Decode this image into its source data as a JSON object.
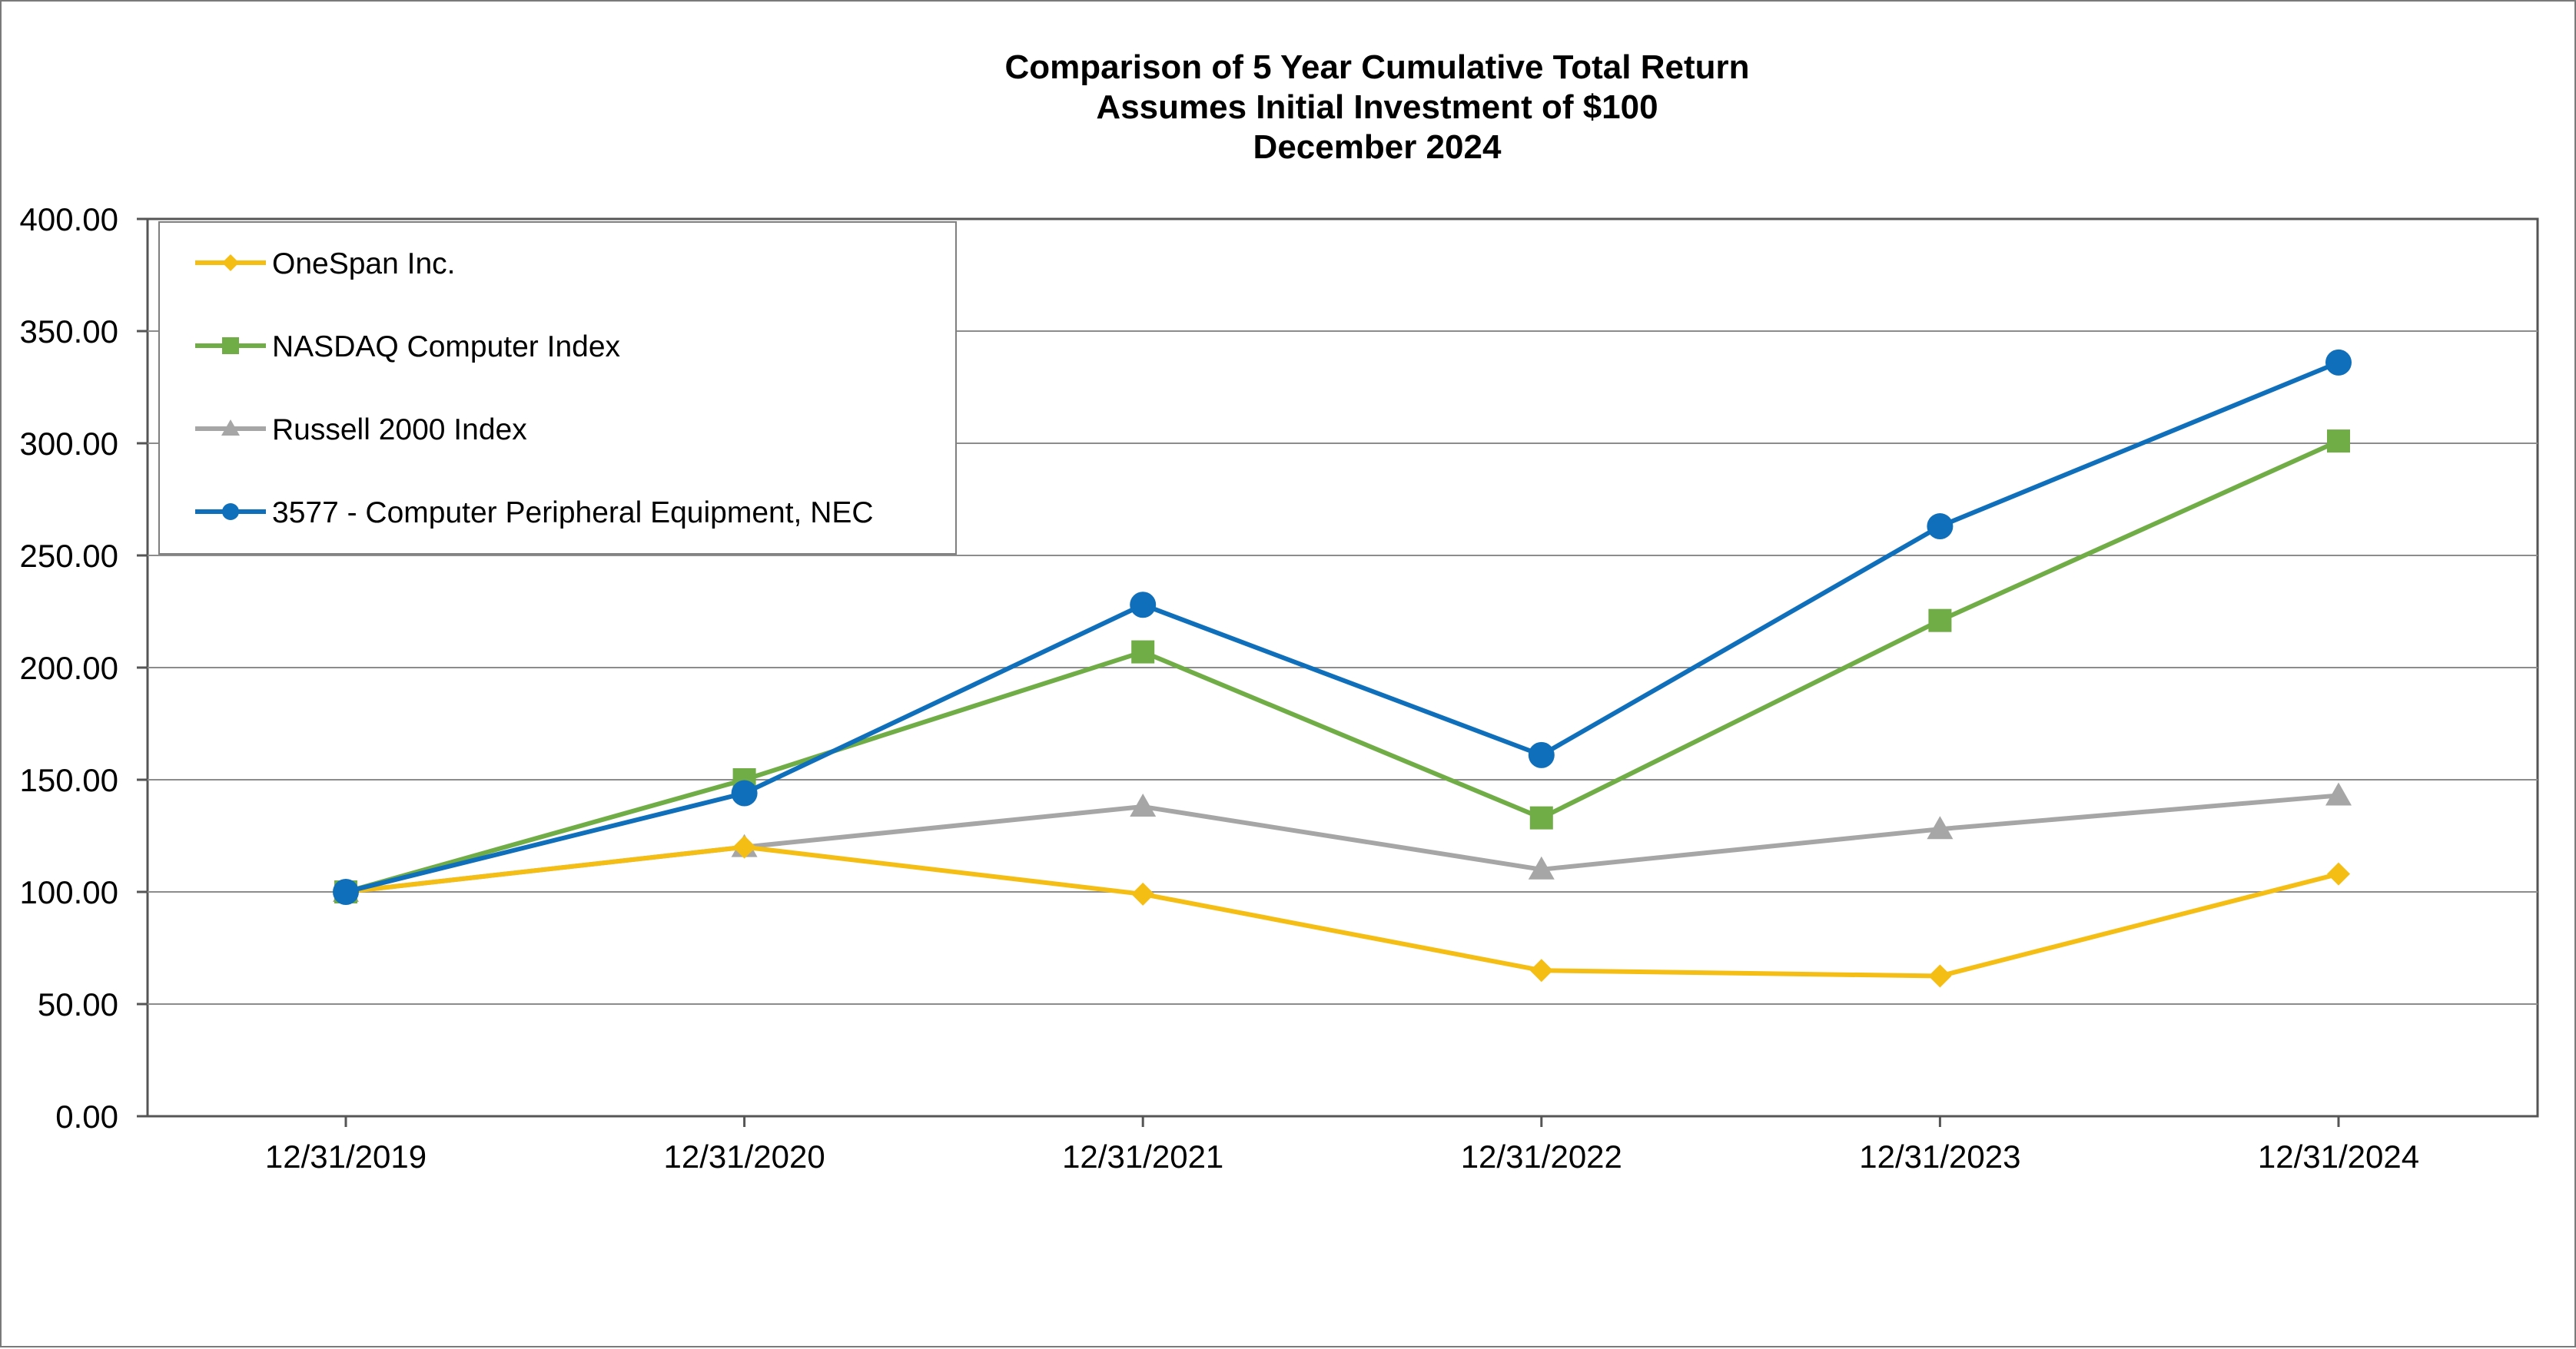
{
  "chart_data": {
    "type": "line",
    "title_lines": [
      "Comparison of 5 Year Cumulative Total Return",
      "Assumes Initial Investment of $100",
      "December 2024"
    ],
    "categories": [
      "12/31/2019",
      "12/31/2020",
      "12/31/2021",
      "12/31/2022",
      "12/31/2023",
      "12/31/2024"
    ],
    "y_ticks": [
      "0.00",
      "50.00",
      "100.00",
      "150.00",
      "200.00",
      "250.00",
      "300.00",
      "350.00",
      "400.00"
    ],
    "ylim": [
      0,
      400
    ],
    "grid": true,
    "legend_position": "top-left",
    "series": [
      {
        "name": "OneSpan Inc.",
        "color": "#F5BE14",
        "marker": "diamond",
        "values": [
          100,
          120,
          99,
          65,
          62.5,
          108
        ]
      },
      {
        "name": "NASDAQ Computer Index",
        "color": "#70AD47",
        "marker": "square",
        "values": [
          100,
          150,
          207,
          133,
          221,
          301
        ]
      },
      {
        "name": "Russell 2000 Index",
        "color": "#A6A6A6",
        "marker": "triangle",
        "values": [
          100,
          120,
          138,
          110,
          128,
          143
        ]
      },
      {
        "name": "3577 - Computer Peripheral Equipment, NEC",
        "color": "#0F6FBA",
        "marker": "circle",
        "values": [
          100,
          144,
          228,
          161,
          263,
          336
        ]
      }
    ]
  }
}
